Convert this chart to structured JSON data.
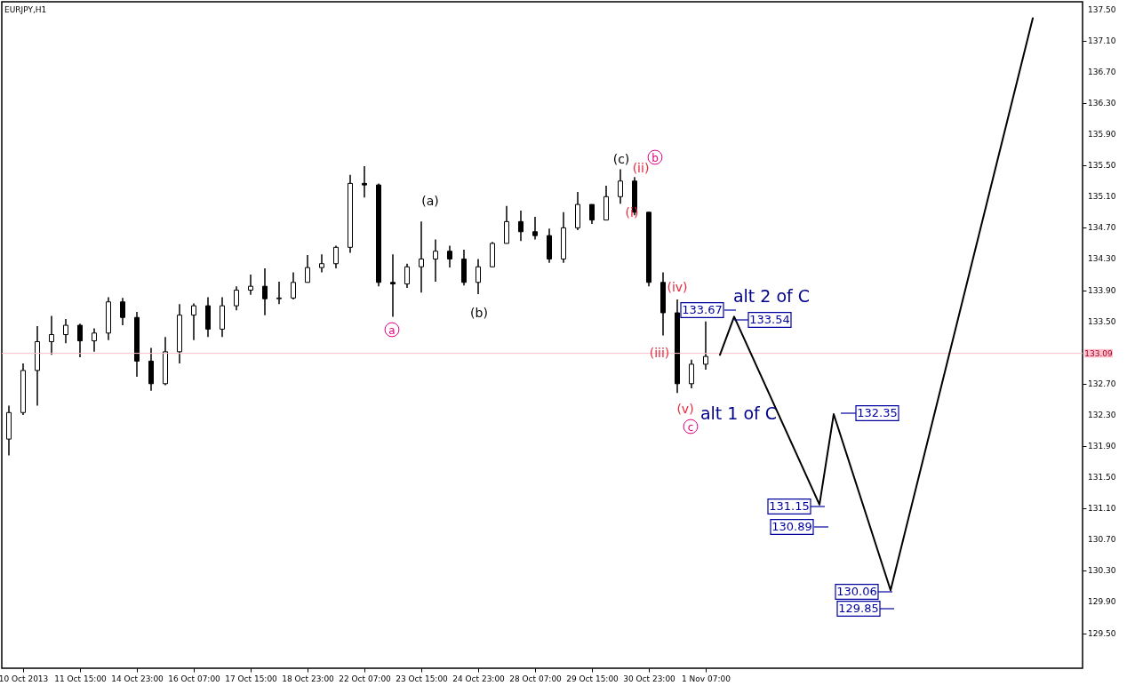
{
  "chart_data": {
    "type": "candlestick",
    "title": "EURJPY,H1",
    "categories": [
      null,
      "10 Oct 2013",
      null,
      null,
      null,
      "11 Oct 15:00",
      null,
      null,
      null,
      "14 Oct 23:00",
      null,
      null,
      null,
      "16 Oct 07:00",
      null,
      null,
      null,
      "17 Oct 15:00",
      null,
      null,
      null,
      "18 Oct 23:00",
      null,
      null,
      null,
      "22 Oct 07:00",
      null,
      null,
      null,
      "23 Oct 15:00",
      null,
      null,
      null,
      "24 Oct 23:00",
      null,
      null,
      null,
      "28 Oct 07:00",
      null,
      null,
      null,
      "29 Oct 15:00",
      null,
      null,
      null,
      "30 Oct 23:00",
      null,
      null,
      null,
      "1 Nov 07:00",
      null,
      null,
      null,
      null,
      null,
      null,
      null,
      null,
      null,
      null,
      null,
      null,
      null,
      null,
      null,
      null,
      null,
      null,
      null,
      null,
      null,
      null,
      null,
      null,
      null,
      null
    ],
    "ohlc": [
      [
        131.99,
        132.42,
        131.78,
        132.33
      ],
      [
        132.33,
        132.96,
        132.3,
        132.87
      ],
      [
        132.87,
        133.44,
        132.42,
        133.24
      ],
      [
        133.24,
        133.57,
        133.07,
        133.33
      ],
      [
        133.33,
        133.53,
        133.22,
        133.45
      ],
      [
        133.45,
        133.47,
        133.04,
        133.25
      ],
      [
        133.25,
        133.41,
        133.11,
        133.35
      ],
      [
        133.35,
        133.81,
        133.26,
        133.75
      ],
      [
        133.75,
        133.8,
        133.45,
        133.55
      ],
      [
        133.55,
        133.62,
        132.79,
        132.99
      ],
      [
        132.99,
        133.16,
        132.61,
        132.7
      ],
      [
        132.7,
        133.3,
        132.68,
        133.11
      ],
      [
        133.11,
        133.72,
        132.96,
        133.58
      ],
      [
        133.58,
        133.73,
        133.26,
        133.7
      ],
      [
        133.7,
        133.81,
        133.3,
        133.4
      ],
      [
        133.4,
        133.81,
        133.3,
        133.7
      ],
      [
        133.7,
        133.95,
        133.64,
        133.9
      ],
      [
        133.9,
        134.1,
        133.84,
        133.95
      ],
      [
        133.95,
        134.18,
        133.58,
        133.79
      ],
      [
        133.79,
        134.01,
        133.72,
        133.8
      ],
      [
        133.8,
        134.13,
        133.78,
        134.0
      ],
      [
        134.0,
        134.35,
        134.0,
        134.19
      ],
      [
        134.19,
        134.36,
        134.13,
        134.24
      ],
      [
        134.24,
        134.47,
        134.18,
        134.45
      ],
      [
        134.45,
        135.38,
        134.38,
        135.27
      ],
      [
        135.27,
        135.49,
        135.09,
        135.25
      ],
      [
        135.25,
        135.27,
        133.95,
        134.0
      ],
      [
        134.0,
        134.36,
        133.56,
        133.98
      ],
      [
        133.98,
        134.24,
        133.93,
        134.2
      ],
      [
        134.2,
        134.78,
        133.87,
        134.3
      ],
      [
        134.3,
        134.55,
        134.01,
        134.4
      ],
      [
        134.4,
        134.47,
        134.19,
        134.3
      ],
      [
        134.3,
        134.42,
        133.96,
        134.0
      ],
      [
        134.0,
        134.3,
        133.85,
        134.2
      ],
      [
        134.2,
        134.52,
        134.2,
        134.5
      ],
      [
        134.5,
        134.98,
        134.5,
        134.78
      ],
      [
        134.78,
        134.92,
        134.53,
        134.65
      ],
      [
        134.65,
        134.84,
        134.55,
        134.6
      ],
      [
        134.6,
        134.69,
        134.25,
        134.3
      ],
      [
        134.3,
        134.9,
        134.25,
        134.7
      ],
      [
        134.7,
        135.16,
        134.67,
        135.0
      ],
      [
        135.0,
        135.0,
        134.75,
        134.8
      ],
      [
        134.8,
        135.24,
        134.8,
        135.1
      ],
      [
        135.1,
        135.45,
        135.01,
        135.3
      ],
      [
        135.3,
        135.35,
        134.86,
        134.9
      ],
      [
        134.9,
        134.9,
        133.95,
        134.0
      ],
      [
        134.0,
        134.13,
        133.32,
        133.61
      ],
      [
        133.61,
        133.78,
        132.58,
        132.7
      ],
      [
        132.7,
        133.01,
        132.64,
        132.95
      ],
      [
        132.95,
        133.5,
        132.88,
        133.05
      ],
      null,
      null,
      null,
      null,
      null,
      null,
      null,
      null,
      null,
      null,
      null,
      null,
      null,
      null,
      null,
      null,
      null,
      null,
      null,
      null,
      null,
      null,
      null,
      null,
      null,
      null
    ],
    "color": "#000000",
    "series": [
      {
        "type": "line",
        "color": "#000000",
        "values": [
          null,
          null,
          null,
          null,
          null,
          null,
          null,
          null,
          null,
          null,
          null,
          null,
          null,
          null,
          null,
          null,
          null,
          null,
          null,
          null,
          null,
          null,
          null,
          null,
          null,
          null,
          null,
          null,
          null,
          null,
          null,
          null,
          null,
          null,
          null,
          null,
          null,
          null,
          null,
          null,
          null,
          null,
          null,
          null,
          null,
          null,
          null,
          null,
          null,
          null,
          133.07,
          133.56,
          null,
          null,
          null,
          null,
          null,
          131.15,
          132.31,
          null,
          null,
          null,
          130.05,
          null,
          null,
          null,
          null,
          null,
          null,
          null,
          null,
          null,
          137.39,
          null,
          null,
          null
        ]
      }
    ],
    "ylim": [
      129.05,
      137.6
    ],
    "yticks": [
      {
        "value": 137.5,
        "label": "137.50"
      },
      {
        "value": 137.1,
        "label": "137.10"
      },
      {
        "value": 136.7,
        "label": "136.70"
      },
      {
        "value": 136.3,
        "label": "136.30"
      },
      {
        "value": 135.9,
        "label": "135.90"
      },
      {
        "value": 135.5,
        "label": "135.50"
      },
      {
        "value": 135.1,
        "label": "135.10"
      },
      {
        "value": 134.7,
        "label": "134.70"
      },
      {
        "value": 134.3,
        "label": "134.30"
      },
      {
        "value": 133.9,
        "label": "133.90"
      },
      {
        "value": 133.5,
        "label": "133.50"
      },
      {
        "value": 132.7,
        "label": "132.70"
      },
      {
        "value": 132.3,
        "label": "132.30"
      },
      {
        "value": 131.9,
        "label": "131.90"
      },
      {
        "value": 131.5,
        "label": "131.50"
      },
      {
        "value": 131.1,
        "label": "131.10"
      },
      {
        "value": 130.7,
        "label": "130.70"
      },
      {
        "value": 130.3,
        "label": "130.30"
      },
      {
        "value": 129.9,
        "label": "129.90"
      },
      {
        "value": 129.5,
        "label": "129.50"
      }
    ],
    "ref_lines": [
      {
        "axis": "y",
        "value": 133.09,
        "label": "133.09",
        "color": "#ffc0cb"
      }
    ],
    "annotations": [
      "a",
      "(a)",
      "(b)",
      "(c)",
      "(ii)",
      "b",
      "(i)",
      "(iv)",
      "(iii)",
      "(v)",
      "c",
      "alt 2 of C",
      "alt 1 of C",
      "133.67",
      "133.54",
      "131.15",
      "130.89",
      "132.35",
      "130.06",
      "129.85"
    ]
  }
}
